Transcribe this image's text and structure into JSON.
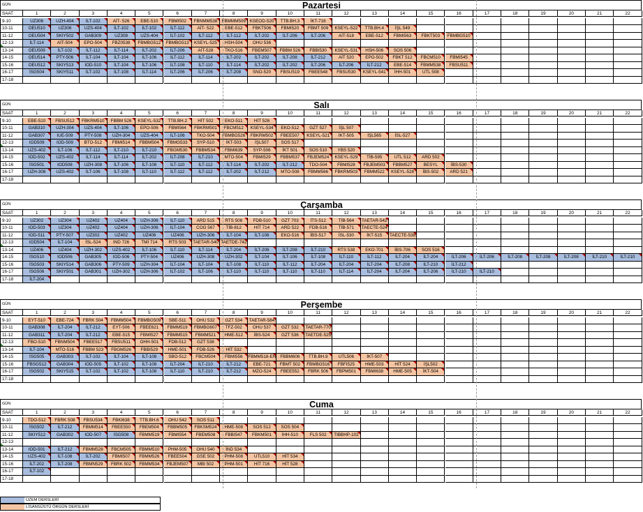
{
  "meta": {
    "gun_label": "GÜN",
    "saat_label": "SAAT"
  },
  "columns": [
    "1",
    "2",
    "3",
    "4",
    "5",
    "6",
    "7",
    "8",
    "9",
    "10",
    "11",
    "12",
    "13",
    "14",
    "15",
    "16",
    "17",
    "18",
    "19",
    "20",
    "21",
    "22"
  ],
  "times": [
    "9-10",
    "10-11",
    "11-12",
    "12-13",
    "13-14",
    "14-15",
    "15-16",
    "16-17",
    "17-18"
  ],
  "colors": {
    "uzem": "#a9bedf",
    "lisansustu": "#f5c5a3"
  },
  "legend": {
    "uzem": "UZEM DERSLERİ",
    "lisansustu": "LİSANSÜSTÜ ÖRGÜN DERSLERİ"
  },
  "days": [
    {
      "name": "Pazartesi",
      "rows": [
        [
          "UZ306|u",
          "UZH-404|u",
          "İLT-102|u",
          "AİT- 526|l",
          "EBE-510|l",
          "FBMI502|l",
          "FBNMM538|l",
          "FBMMM509|l",
          "KSEOD-520|l",
          "TTB.BH.3|l",
          "İKT-716|l"
        ],
        [
          "OEU510|u",
          "UZ306|u",
          "UZS-404|u",
          "İLT-102|u",
          "İLT-102|u",
          "İLT-112|u",
          "AİT- 522|l",
          "EBE-512|l",
          "FBKT506|l",
          "FBMI520|l",
          "FBMT 509|l",
          "KSEYL-522|l",
          "TTB.BH.4|l",
          "İŞL 549|l"
        ],
        [
          "OEU504|u",
          "SKIY502|u",
          "GAB309|u",
          "UZ308|u",
          "UZS-404|u",
          "İLT-102|u",
          "İLT-112|u",
          "İLT-112|u",
          "İLT-202|u",
          "İLT-206|u",
          "İLT-206|u",
          "AİT-518|l",
          "EBE-512|l",
          "FBMI563|l",
          "FBKT503|l",
          "FBMBG510|l"
        ],
        [
          "İLT-114|u",
          "AİT-504|l",
          "EPO-504|l",
          "FBZ0538|l",
          "FBMBG512|l",
          "FBMBG513|l",
          "KSEYL-525|l",
          "HSH-504|l",
          "OHU 536|l"
        ],
        [
          "OEU509|u",
          "İLT-102|u",
          "İLT-112|u",
          "İLT-114|u",
          "İLT-202|u",
          "İLT-206|u",
          "AİT-528|l",
          "TKO-516|l",
          "FBEM507|l",
          "FBBM 526|l",
          "FBBI530|l",
          "KSEYL-531|l",
          "HSH-506|l",
          "SOS 506|l"
        ],
        [
          "OEU514|u",
          "PTY-506|u",
          "İLT-104|u",
          "İLT-104|u",
          "İLT-106|u",
          "İLT-112|u",
          "İLT-114|u",
          "İLT-202|u",
          "İLT-202|u",
          "İLT-208|u",
          "İLT-212|u",
          "AİT 520|l",
          "EPO-502|l",
          "FBKT 512|l",
          "FBCM510|l",
          "FBMI545|l"
        ],
        [
          "OEU512|u",
          "SKIY513|u",
          "IOD-510|u",
          "İLT-104|u",
          "İLT-106|u",
          "İLT-108|u",
          "İLT-110|u",
          "İLT-114|u",
          "İLT-202|u",
          "İLT-202|u",
          "İLT-206|u",
          "İLT-206|u",
          "İLT-212|u",
          "EBE-514|l",
          "FBMM538|l",
          "FBSU511|l"
        ],
        [
          "İSG504|u",
          "SKIY511|u",
          "İLT-102|u",
          "İLT-108|u",
          "İLT-114|u",
          "İLT-206|u",
          "İLT-206|u",
          "İLT-208|u",
          "SNO-520|l",
          "FBSU519|l",
          "FBEE548|l",
          "FBSU530|l",
          "KSEYL-541|l",
          "İHH-501|l",
          "UTL 508|l"
        ],
        []
      ]
    },
    {
      "name": "Salı",
      "rows": [
        [
          "EBE-510|l",
          "FBSU512|l",
          "FBKRM510|l",
          "FBBM 526|l",
          "KSEYL-532|l",
          "TTB.BH.2|l",
          "HİT 502|l",
          "EKO-511|l",
          "HİT 526|l"
        ],
        [
          "GAB310|u",
          "UZH-304|u",
          "UZS-404|u",
          "İLT-106|u",
          "EPO-506|l",
          "FBMI564|l",
          "FBKRM501|l",
          "FBCM512|l",
          "KSEYL-534|l",
          "EKO-512|l",
          "GZT 527|l",
          "İŞL 507|l"
        ],
        [
          "GAB307|u",
          "IUE-509|u",
          "PTY-508|u",
          "UZH-304|u",
          "UZS-404|u",
          "İLT-106|u",
          "TKO-504|l",
          "FBMBG526|l",
          "FBKRM502|l",
          "FBEE507|l",
          "KSEYL-521|l",
          "İKT-505|l",
          "İŞL565|l",
          "İSL-527|l"
        ],
        [
          "IOD509|u",
          "IOD-509|u",
          "BTO-512|l",
          "FBMI514|l",
          "FBBM504|l",
          "FBMG533|l",
          "SYP-510|l",
          "İKT-503|l",
          "İŞL507|l",
          "SOS 517|l"
        ],
        [
          "UZS-402|u",
          "İLT-106|u",
          "İLT-112|u",
          "İLT-210|u",
          "İLT-210|u",
          "FBGM530|l",
          "FBBM534|l",
          "FBMI639|l",
          "SYP-506|l",
          "İKT 501|l",
          "SOS 510|l",
          "YBS 520|l"
        ],
        [
          "IOD-502|u",
          "UZS-402|u",
          "İLT-114|u",
          "İLT-114|u",
          "İLT-202|u",
          "İLT-208|u",
          "İLT-210|u",
          "MTO-504|l",
          "FBMI529|l",
          "FBBM537|l",
          "FBJEM524|l",
          "KSEYL-529|l",
          "TİB-595|l",
          "UTL 512|l",
          "ARD 502|l"
        ],
        [
          "İSG501|u",
          "IOD508|u",
          "UZH-308|u",
          "İLT-106|u",
          "İLT-108|u",
          "İLT-110|u",
          "İLT-112|u",
          "İLT-114|u",
          "İLT-202|u",
          "İLT-212|u",
          "TDO-504|l",
          "FBMI528|l",
          "FBJEM503|l",
          "FBBM527|l",
          "BESYL|l",
          "İBS-530|l"
        ],
        [
          "UZH-308|u",
          "UZS-402|u",
          "İLT-106|u",
          "İLT-108|u",
          "İLT-110|u",
          "İLT-112|u",
          "İLT-112|u",
          "İLT-202|u",
          "İLT-212|u",
          "MTO-508|l",
          "FBMM566|l",
          "FBKRM503|l",
          "FBMM522|l",
          "KSEYL-528|l",
          "İBS-502|l",
          "ARD 521|l"
        ],
        []
      ]
    },
    {
      "name": "Çarşamba",
      "rows": [
        [
          "UZ302|u",
          "UZ304|u",
          "UZ402|u",
          "UZ404|u",
          "UZH-306|u",
          "İLT-110|u",
          "ARD 515|l",
          "RTS 508|l",
          "FDB-510|l",
          "GZT 703|l",
          "İTS-512|l",
          "TİB-564|l",
          "TAETAR-542|l"
        ],
        [
          "IOD-503|u",
          "UZ304|u",
          "UZ402|u",
          "UZ404|u",
          "UZH-306|u",
          "İLT-104|u",
          "COG 567|l",
          "TİB-812|l",
          "HİT 714|l",
          "ARD 522|l",
          "FDB-516|l",
          "TİB-571|l",
          "TAECTE-524|l"
        ],
        [
          "IOD-511|u",
          "PTY-507|u",
          "UZ302|u",
          "UZ402|u",
          "UZ406|u",
          "UZ406|u",
          "UZH-306|u",
          "İLT-104|u",
          "İLT-106|u",
          "EKO-516|l",
          "İBS-517|l",
          "İSL-530|l",
          "İKT-515|l",
          "TAECTE-538|l"
        ],
        [
          "IOD504|u",
          "İLT-104|u",
          "İSL-524|l",
          "IND 726|l",
          "TMİ 714|l",
          "RTS 503|l",
          "TAETAR-540|l",
          "TAETDE-742|l"
        ],
        [
          "UZ406|u",
          "UZ404|u",
          "UZH-302|u",
          "UZS-402|u",
          "İLT-106|u",
          "İLT-110|u",
          "İLT-114|u",
          "İLT-204|u",
          "İLT-206|u",
          "İLT-208|u",
          "İLT-210|u",
          "RTS 538|l",
          "EKO-701|l",
          "İBS-706|l",
          "SOS 516|l"
        ],
        [
          "İSG510|u",
          "IOD506|u",
          "GAB305|u",
          "IOD-506|u",
          "PTY-504|u",
          "UZ406|u",
          "UZH-308|u",
          "UZH-302|u",
          "İLT-104|u",
          "İLT-106|u",
          "İLT-108|u",
          "İLT-110|u",
          "İLT-112|u",
          "İLT-204|u",
          "İLT-204|u",
          "İLT-206|u",
          "İLT-206|u",
          "İLT-208|u",
          "İLT-208|u",
          "İLT-208|u",
          "İLT-210|u",
          "İLT-210|u"
        ],
        [
          "İSG503|u",
          "SKIY514|u",
          "GAB306|u",
          "PTY-509|u",
          "UZH-304|u",
          "İLT-104|u",
          "İLT-104|u",
          "İLT-108|u",
          "İLT-110|u",
          "İLT-112|u",
          "İLT-204|u",
          "İLT-204|u",
          "İLT-204|u",
          "İLT-208|u",
          "İLT-210|u",
          "İLT-212|u"
        ],
        [
          "İSG506|u",
          "SKIY501|u",
          "GAB301|u",
          "UZH-302|u",
          "UZH-306|u",
          "İLT-102|u",
          "İLT-106|u",
          "İLT-110|u",
          "İLT-110|u",
          "İLT-110|u",
          "İLT-110|u",
          "İLT-114|u",
          "İLT-204|u",
          "İLT-204|u",
          "İLT-206|u",
          "İLT-210|u",
          "İLT-210|u"
        ],
        [
          "İLT-204|u"
        ]
      ]
    },
    {
      "name": "Perşembe",
      "rows": [
        [
          "EYT-510|l",
          "EBE-724|l",
          "FBRK 504|l",
          "FBMM504|l",
          "FBMBG509|l",
          "SBE-511|l",
          "OHU 532|l",
          "GZT 534|l",
          "TAETAR-584|l"
        ],
        [
          "GAB308|u",
          "İLT-204|u",
          "İLT-212|u",
          "EYT-506|l",
          "FBEE621|l",
          "FBMM519|l",
          "FBMBG607|l",
          "TFZ-502|l",
          "OHU 537|l",
          "GZT 532|l",
          "TAETAR-770|l"
        ],
        [
          "GAB311|u",
          "İLT-204|u",
          "İLT-212|u",
          "EBE-515|l",
          "FBMI527|l",
          "FBMM515|l",
          "FBMM521|l",
          "HME-512|l",
          "İBS-524|l",
          "GZT 536|l",
          "TAETDE-525|l"
        ],
        [
          "FBO-510|l",
          "FBNM504|l",
          "FBEE517|l",
          "FBSU511|l",
          "OHH-501|l",
          "FDB-512|l",
          "GZT 538|l"
        ],
        [
          "İLT-104|u",
          "MTO-516|l",
          "FBBM 523|l",
          "FBGM526|l",
          "FBBI529|l",
          "HME-501|l",
          "FDB-526|l",
          "HİT 532|l"
        ],
        [
          "İSG505|u",
          "GAB303|u",
          "İLT-102|u",
          "İLT-104|u",
          "İLT-108|u",
          "SBO-512|l",
          "FBCM504|l",
          "FBMI556|l",
          "FBMM518-EN|l",
          "FBBM606|l",
          "TTB.BH.9|l",
          "UTL506|l",
          "İKT-507|l"
        ],
        [
          "FBSG512|u",
          "GAB304|u",
          "IOD-505|u",
          "İLT-102|u",
          "İLT-108|u",
          "İLT-204|u",
          "İLT-210|u",
          "İLT-212|u",
          "EBE-721|l",
          "FBMT 502|l",
          "FBMBG516|l",
          "FBFI525|l",
          "HME-503|l",
          "HİT 524|l",
          "İŞL502|l"
        ],
        [
          "İSG502|u",
          "SKIY515|u",
          "İLT-102|u",
          "İLT-102|u",
          "İLT-108|u",
          "İLT-110|u",
          "İLT-210|u",
          "İLT-212|u",
          "MZO-524|l",
          "FBEE552|l",
          "FBRK 506|l",
          "FBPM501|l",
          "FBMI638|l",
          "HME-505|l",
          "İKT-504|l"
        ],
        []
      ]
    },
    {
      "name": "Cuma",
      "rows": [
        [
          "TDO-512|l",
          "FBRK 508|l",
          "FBSU534|l",
          "FBKI638|l",
          "TTB.BH.6|l",
          "OHU 542|l",
          "SOS 511|l"
        ],
        [
          "İSG502|u",
          "İLT-212|u",
          "FBMM514|l",
          "FBEE550|l",
          "FBEM504|l",
          "FBBM505|l",
          "FBKSM524|l",
          "HME-508|l",
          "SOS 512|l",
          "SOS 504|l"
        ],
        [
          "SKIY512|u",
          "GAB302|u",
          "IOD-507|u",
          "İSG508|u",
          "FBMM519|l",
          "FBMI554|l",
          "FBEM508|l",
          "FBBI547|l",
          "FBKM501|l",
          "İHH-510|l",
          "FLS 502|l",
          "TIBBHP-102|l"
        ],
        [],
        [
          "IOD-501|u",
          "İLT-212|u",
          "FBMM528|l",
          "FBCM505|l",
          "FBMM510|l",
          "PHM-505|l",
          "OHU 540|l",
          "İND 534|l"
        ],
        [
          "UZS-402|u",
          "İLT-108|u",
          "İLT-202|u",
          "FBMI507|l",
          "FBMM526|l",
          "FBEE504|l",
          "GSE 502|l",
          "PHM-508|l",
          "UTL510|l",
          "HİT 534|l"
        ],
        [
          "İLT-202|u",
          "İLT-208|u",
          "FBMN529|l",
          "FBRK 502|l",
          "FBMM534|l",
          "FBJEM507|l",
          "MBI 502|l",
          "PHM-501|l",
          "HİT 716|l",
          "HİT 528|l"
        ],
        [
          "İLT-102|u"
        ],
        []
      ]
    }
  ]
}
